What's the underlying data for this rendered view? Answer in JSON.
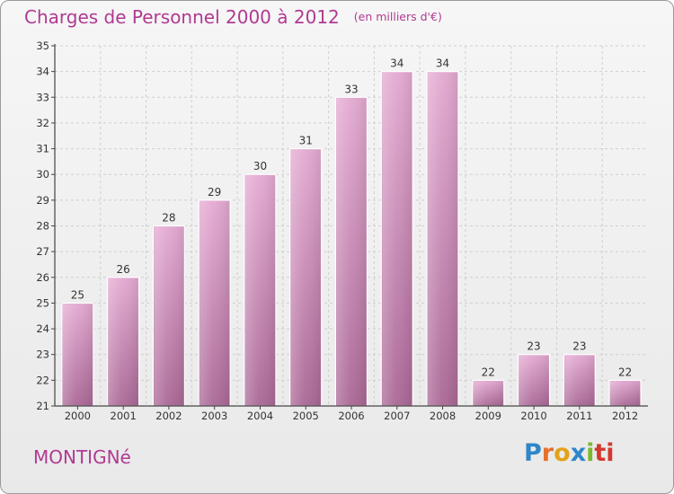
{
  "header": {
    "title": "Charges de Personnel 2000 à 2012",
    "unit": "(en milliers d'€)"
  },
  "footer": {
    "city": "MONTIGNé",
    "logo": [
      "P",
      "r",
      "o",
      "x",
      "i",
      "ti"
    ]
  },
  "colors": {
    "title": "#b03a92",
    "bar_top": "#e4aad2",
    "bar_bottom": "#aa6896",
    "axis": "#444444",
    "grid": "#cfcfcf"
  },
  "chart_data": {
    "type": "bar",
    "categories": [
      "2000",
      "2001",
      "2002",
      "2003",
      "2004",
      "2005",
      "2006",
      "2007",
      "2008",
      "2009",
      "2010",
      "2011",
      "2012"
    ],
    "values": [
      25,
      26,
      28,
      29,
      30,
      31,
      33,
      34,
      34,
      22,
      23,
      23,
      22
    ],
    "title": "Charges de Personnel 2000 à 2012",
    "subtitle": "(en milliers d'€)",
    "xlabel": "",
    "ylabel": "",
    "ylim": [
      21,
      35
    ],
    "yticks": [
      21,
      22,
      23,
      24,
      25,
      26,
      27,
      28,
      29,
      30,
      31,
      32,
      33,
      34,
      35
    ],
    "grid": true,
    "data_labels": true
  }
}
